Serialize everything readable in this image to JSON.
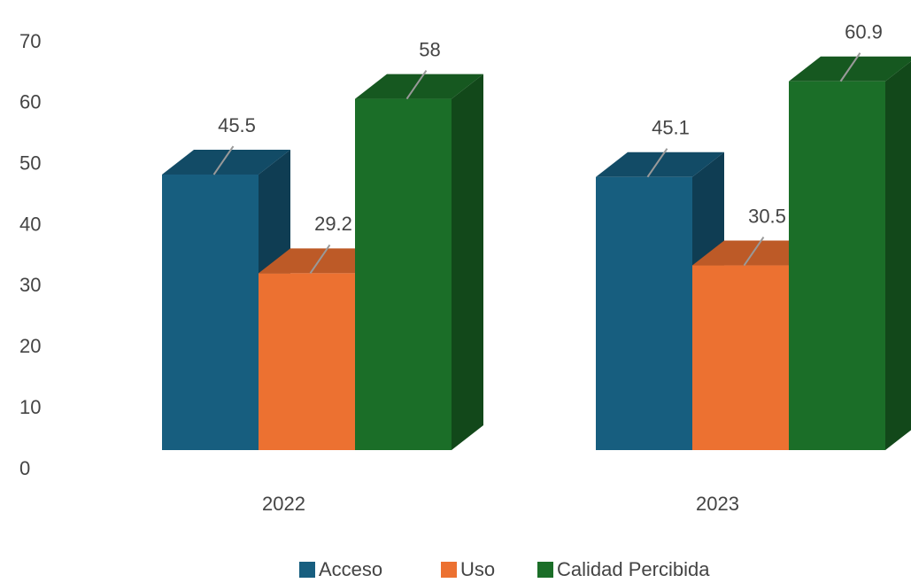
{
  "chart_data": {
    "type": "bar3d",
    "categories": [
      "2022",
      "2023"
    ],
    "series": [
      {
        "name": "Acceso",
        "color": "#175e7f",
        "values": [
          45.5,
          45.1
        ]
      },
      {
        "name": "Uso",
        "color": "#ec7131",
        "values": [
          29.2,
          30.5
        ]
      },
      {
        "name": "Calidad Percibida",
        "color": "#1b6e28",
        "values": [
          58,
          60.9
        ]
      }
    ],
    "ylim": [
      0,
      70
    ],
    "yticks": [
      0,
      10,
      20,
      30,
      40,
      50,
      60,
      70
    ],
    "grid": false,
    "legend": "bottom"
  }
}
